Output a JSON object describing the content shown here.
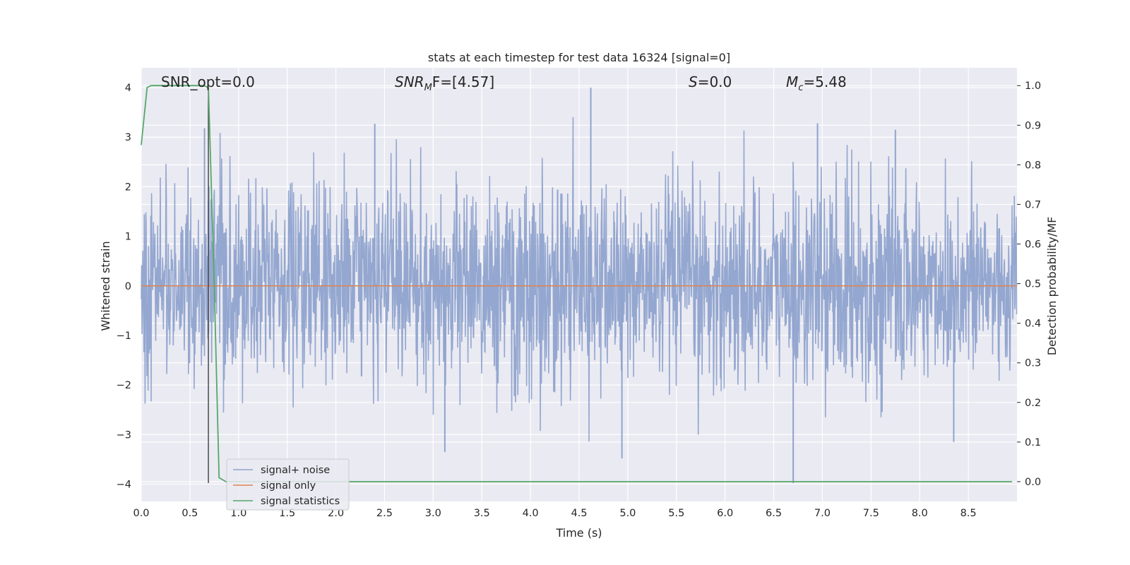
{
  "chart_data": {
    "type": "line",
    "title": "stats at each timestep for test data 16324 [signal=0]",
    "xlabel": "Time (s)",
    "ylabel": "Whitened strain",
    "ylabel_right": "Detection probability/MF",
    "xlim": [
      0.0,
      9.0
    ],
    "ylim": [
      -4.35,
      4.4
    ],
    "ylim_right": [
      -0.05,
      1.045
    ],
    "x_ticks": [
      "0.0",
      "0.5",
      "1.0",
      "1.5",
      "2.0",
      "2.5",
      "3.0",
      "3.5",
      "4.0",
      "4.5",
      "5.0",
      "5.5",
      "6.0",
      "6.5",
      "7.0",
      "7.5",
      "8.0",
      "8.5"
    ],
    "y_ticks": [
      "−4",
      "−3",
      "−2",
      "−1",
      "0",
      "1",
      "2",
      "3",
      "4"
    ],
    "y_ticks_right": [
      "0.0",
      "0.1",
      "0.2",
      "0.3",
      "0.4",
      "0.5",
      "0.6",
      "0.7",
      "0.8",
      "0.9",
      "1.0"
    ],
    "grid": true,
    "legend_position": "lower-left",
    "annotations": {
      "snr_opt": "SNR_opt=0.0",
      "snr_mf_base": "SNR",
      "snr_mf_sub": "M",
      "snr_mf_rest": "F=[4.57]",
      "s_sym": "S",
      "s_rest": "=0.0",
      "mc_base": "M",
      "mc_sub": "c",
      "mc_rest": "=5.48"
    },
    "series": [
      {
        "name": "signal+ noise",
        "color": "#8fa3cd",
        "description_range": [
          -3.98,
          4.0
        ],
        "notable_peaks": [
          {
            "x": 0.65,
            "y": 3.18
          },
          {
            "x": 2.4,
            "y": 3.27
          },
          {
            "x": 4.62,
            "y": 4.0
          },
          {
            "x": 4.94,
            "y": -3.48
          },
          {
            "x": 6.7,
            "y": -3.98
          },
          {
            "x": 6.95,
            "y": 3.28
          },
          {
            "x": 3.12,
            "y": -3.35
          },
          {
            "x": 8.35,
            "y": -3.15
          },
          {
            "x": 7.75,
            "y": 3.15
          }
        ]
      },
      {
        "name": "signal only",
        "color": "#dd8452",
        "x": [
          0.0,
          9.0
        ],
        "y": [
          0.0,
          0.0
        ]
      },
      {
        "name": "signal statistics",
        "color": "#55a868",
        "axis": "right",
        "x": [
          0.0,
          0.06,
          0.1,
          0.15,
          0.3,
          0.5,
          0.64,
          0.69,
          0.75,
          0.8,
          0.87,
          1.0,
          2.0,
          4.0,
          6.0,
          8.0,
          8.95
        ],
        "y": [
          0.85,
          0.995,
          1.0,
          1.0,
          1.0,
          1.0,
          1.0,
          0.995,
          0.5,
          0.01,
          0.0,
          0.0,
          0.0,
          0.0,
          0.0,
          0.0,
          0.0
        ]
      }
    ],
    "vline_x": 0.69,
    "vline_color": "#4a4a4a"
  }
}
